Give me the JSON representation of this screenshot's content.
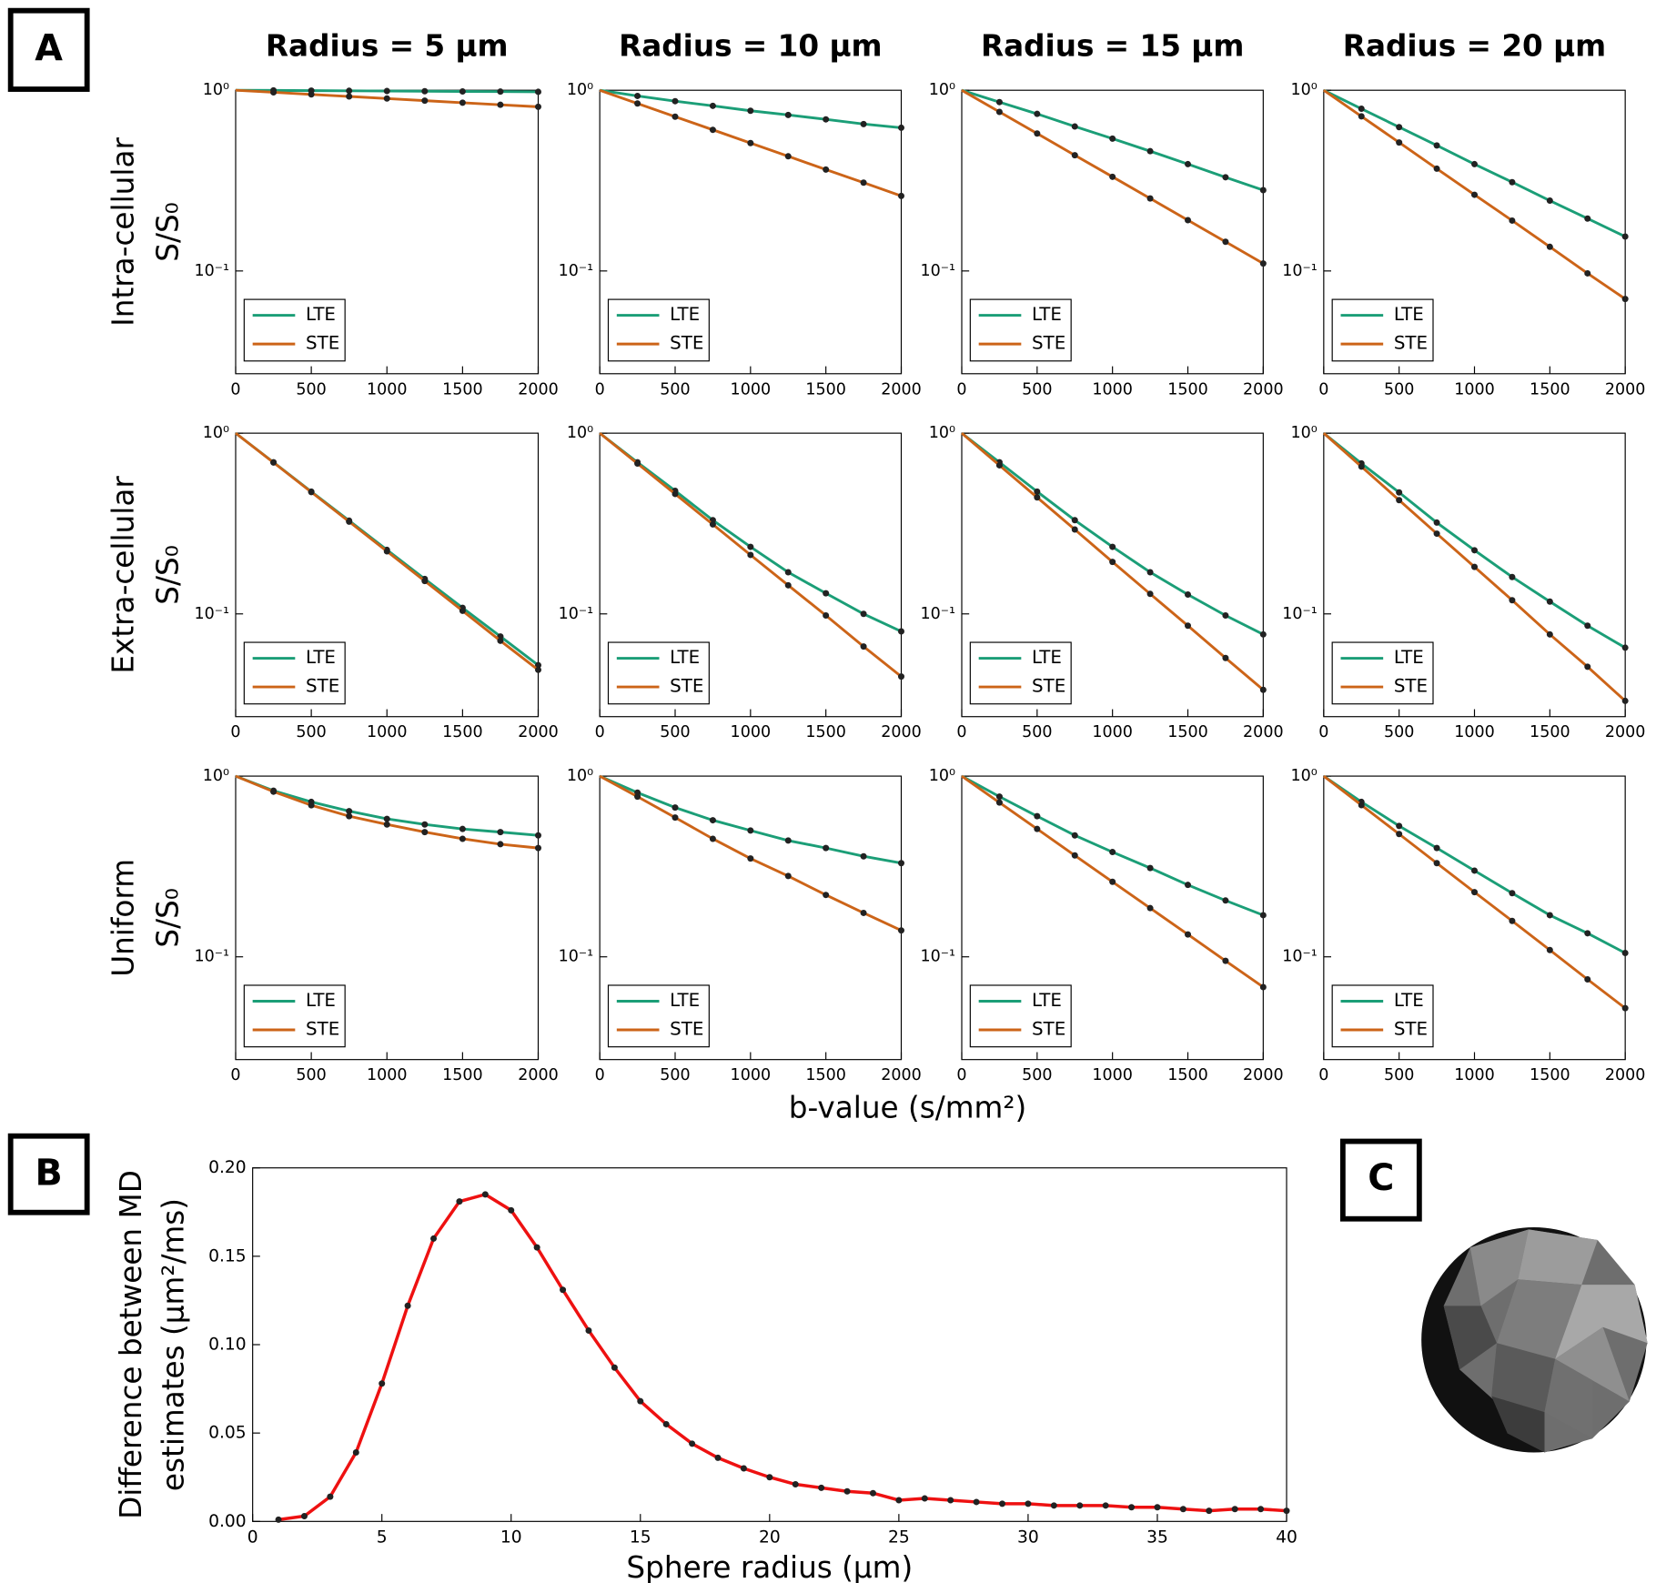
{
  "panel_labels": [
    "A",
    "B",
    "C"
  ],
  "shared_xlabel": "b-value (s/mm²)",
  "chart_data": [
    {
      "type": "line",
      "title": "Radius = 5 μm",
      "ylabel": [
        "Intra-cellular",
        "S/S₀"
      ],
      "log_y": true,
      "legend": "lower left",
      "x": [
        0,
        250,
        500,
        750,
        1000,
        1250,
        1500,
        1750,
        2000
      ],
      "xlim": [
        0,
        2000
      ],
      "xticks": [
        0,
        500,
        1000,
        1500,
        2000
      ],
      "ylim": [
        0.027,
        1
      ],
      "yticks": [
        {
          "value": 1,
          "label": "10⁰"
        },
        {
          "value": 0.1,
          "label": "10⁻¹"
        }
      ],
      "series": [
        {
          "name": "LTE",
          "color": "#1b9e77",
          "values": [
            1,
            0.998,
            0.995,
            0.993,
            0.99,
            0.988,
            0.985,
            0.983,
            0.98
          ]
        },
        {
          "name": "STE",
          "color": "#cc6418",
          "values": [
            1,
            0.974,
            0.948,
            0.924,
            0.9,
            0.876,
            0.853,
            0.831,
            0.81
          ]
        }
      ]
    },
    {
      "type": "line",
      "title": "Radius = 10 μm",
      "log_y": true,
      "legend": "lower left",
      "x": [
        0,
        250,
        500,
        750,
        1000,
        1250,
        1500,
        1750,
        2000
      ],
      "xlim": [
        0,
        2000
      ],
      "xticks": [
        0,
        500,
        1000,
        1500,
        2000
      ],
      "ylim": [
        0.027,
        1
      ],
      "yticks": [
        {
          "value": 1,
          "label": "10⁰"
        },
        {
          "value": 0.1,
          "label": "10⁻¹"
        }
      ],
      "series": [
        {
          "name": "LTE",
          "color": "#1b9e77",
          "values": [
            1,
            0.93,
            0.87,
            0.82,
            0.77,
            0.73,
            0.69,
            0.65,
            0.62
          ]
        },
        {
          "name": "STE",
          "color": "#cc6418",
          "values": [
            1,
            0.845,
            0.714,
            0.604,
            0.51,
            0.431,
            0.364,
            0.308,
            0.26
          ]
        }
      ]
    },
    {
      "type": "line",
      "title": "Radius = 15 μm",
      "log_y": true,
      "legend": "lower left",
      "x": [
        0,
        250,
        500,
        750,
        1000,
        1250,
        1500,
        1750,
        2000
      ],
      "xlim": [
        0,
        2000
      ],
      "xticks": [
        0,
        500,
        1000,
        1500,
        2000
      ],
      "ylim": [
        0.027,
        1
      ],
      "yticks": [
        {
          "value": 1,
          "label": "10⁰"
        },
        {
          "value": 0.1,
          "label": "10⁻¹"
        }
      ],
      "series": [
        {
          "name": "LTE",
          "color": "#1b9e77",
          "values": [
            1,
            0.86,
            0.74,
            0.63,
            0.54,
            0.46,
            0.39,
            0.33,
            0.28
          ]
        },
        {
          "name": "STE",
          "color": "#cc6418",
          "values": [
            1,
            0.759,
            0.576,
            0.437,
            0.332,
            0.252,
            0.191,
            0.145,
            0.11
          ]
        }
      ]
    },
    {
      "type": "line",
      "title": "Radius = 20 μm",
      "log_y": true,
      "legend": "lower left",
      "x": [
        0,
        250,
        500,
        750,
        1000,
        1250,
        1500,
        1750,
        2000
      ],
      "xlim": [
        0,
        2000
      ],
      "xticks": [
        0,
        500,
        1000,
        1500,
        2000
      ],
      "ylim": [
        0.027,
        1
      ],
      "yticks": [
        {
          "value": 1,
          "label": "10⁰"
        },
        {
          "value": 0.1,
          "label": "10⁻¹"
        }
      ],
      "series": [
        {
          "name": "LTE",
          "color": "#1b9e77",
          "values": [
            1,
            0.79,
            0.625,
            0.495,
            0.39,
            0.31,
            0.245,
            0.195,
            0.155
          ]
        },
        {
          "name": "STE",
          "color": "#cc6418",
          "values": [
            1,
            0.717,
            0.514,
            0.368,
            0.264,
            0.19,
            0.136,
            0.097,
            0.07
          ]
        }
      ]
    },
    {
      "type": "line",
      "ylabel": [
        "Extra-cellular",
        "S/S₀"
      ],
      "log_y": true,
      "legend": "lower left",
      "x": [
        0,
        250,
        500,
        750,
        1000,
        1250,
        1500,
        1750,
        2000
      ],
      "xlim": [
        0,
        2000
      ],
      "xticks": [
        0,
        500,
        1000,
        1500,
        2000
      ],
      "ylim": [
        0.027,
        1
      ],
      "yticks": [
        {
          "value": 1,
          "label": "10⁰"
        },
        {
          "value": 0.1,
          "label": "10⁻¹"
        }
      ],
      "series": [
        {
          "name": "LTE",
          "color": "#1b9e77",
          "values": [
            1,
            0.69,
            0.475,
            0.328,
            0.226,
            0.156,
            0.108,
            0.075,
            0.052
          ]
        },
        {
          "name": "STE",
          "color": "#cc6418",
          "values": [
            1,
            0.688,
            0.472,
            0.324,
            0.222,
            0.152,
            0.104,
            0.071,
            0.049
          ]
        }
      ]
    },
    {
      "type": "line",
      "log_y": true,
      "legend": "lower left",
      "x": [
        0,
        250,
        500,
        750,
        1000,
        1250,
        1500,
        1750,
        2000
      ],
      "xlim": [
        0,
        2000
      ],
      "xticks": [
        0,
        500,
        1000,
        1500,
        2000
      ],
      "ylim": [
        0.027,
        1
      ],
      "yticks": [
        {
          "value": 1,
          "label": "10⁰"
        },
        {
          "value": 0.1,
          "label": "10⁻¹"
        }
      ],
      "series": [
        {
          "name": "LTE",
          "color": "#1b9e77",
          "values": [
            1,
            0.69,
            0.48,
            0.33,
            0.235,
            0.17,
            0.13,
            0.1,
            0.08
          ]
        },
        {
          "name": "STE",
          "color": "#cc6418",
          "values": [
            1,
            0.679,
            0.461,
            0.313,
            0.212,
            0.144,
            0.098,
            0.066,
            0.045
          ]
        }
      ]
    },
    {
      "type": "line",
      "log_y": true,
      "legend": "lower left",
      "x": [
        0,
        250,
        500,
        750,
        1000,
        1250,
        1500,
        1750,
        2000
      ],
      "xlim": [
        0,
        2000
      ],
      "xticks": [
        0,
        500,
        1000,
        1500,
        2000
      ],
      "ylim": [
        0.027,
        1
      ],
      "yticks": [
        {
          "value": 1,
          "label": "10⁰"
        },
        {
          "value": 0.1,
          "label": "10⁻¹"
        }
      ],
      "series": [
        {
          "name": "LTE",
          "color": "#1b9e77",
          "values": [
            1,
            0.69,
            0.475,
            0.33,
            0.235,
            0.17,
            0.128,
            0.098,
            0.077
          ]
        },
        {
          "name": "STE",
          "color": "#cc6418",
          "values": [
            1,
            0.664,
            0.441,
            0.293,
            0.194,
            0.129,
            0.086,
            0.057,
            0.038
          ]
        }
      ]
    },
    {
      "type": "line",
      "log_y": true,
      "legend": "lower left",
      "x": [
        0,
        250,
        500,
        750,
        1000,
        1250,
        1500,
        1750,
        2000
      ],
      "xlim": [
        0,
        2000
      ],
      "xticks": [
        0,
        500,
        1000,
        1500,
        2000
      ],
      "ylim": [
        0.027,
        1
      ],
      "yticks": [
        {
          "value": 1,
          "label": "10⁰"
        },
        {
          "value": 0.1,
          "label": "10⁻¹"
        }
      ],
      "series": [
        {
          "name": "LTE",
          "color": "#1b9e77",
          "values": [
            1,
            0.68,
            0.47,
            0.32,
            0.225,
            0.16,
            0.117,
            0.086,
            0.065
          ]
        },
        {
          "name": "STE",
          "color": "#cc6418",
          "values": [
            1,
            0.653,
            0.426,
            0.278,
            0.182,
            0.119,
            0.077,
            0.051,
            0.033
          ]
        }
      ]
    },
    {
      "type": "line",
      "ylabel": [
        "Uniform",
        "S/S₀"
      ],
      "log_y": true,
      "legend": "lower left",
      "x": [
        0,
        250,
        500,
        750,
        1000,
        1250,
        1500,
        1750,
        2000
      ],
      "xlim": [
        0,
        2000
      ],
      "xticks": [
        0,
        500,
        1000,
        1500,
        2000
      ],
      "ylim": [
        0.027,
        1
      ],
      "yticks": [
        {
          "value": 1,
          "label": "10⁰"
        },
        {
          "value": 0.1,
          "label": "10⁻¹"
        }
      ],
      "series": [
        {
          "name": "LTE",
          "color": "#1b9e77",
          "values": [
            1,
            0.83,
            0.72,
            0.64,
            0.58,
            0.54,
            0.51,
            0.49,
            0.47
          ]
        },
        {
          "name": "STE",
          "color": "#cc6418",
          "values": [
            1,
            0.82,
            0.69,
            0.6,
            0.54,
            0.49,
            0.45,
            0.42,
            0.4
          ]
        }
      ]
    },
    {
      "type": "line",
      "log_y": true,
      "legend": "lower left",
      "x": [
        0,
        250,
        500,
        750,
        1000,
        1250,
        1500,
        1750,
        2000
      ],
      "xlim": [
        0,
        2000
      ],
      "xticks": [
        0,
        500,
        1000,
        1500,
        2000
      ],
      "ylim": [
        0.027,
        1
      ],
      "yticks": [
        {
          "value": 1,
          "label": "10⁰"
        },
        {
          "value": 0.1,
          "label": "10⁻¹"
        }
      ],
      "series": [
        {
          "name": "LTE",
          "color": "#1b9e77",
          "values": [
            1,
            0.81,
            0.67,
            0.57,
            0.5,
            0.44,
            0.4,
            0.36,
            0.33
          ]
        },
        {
          "name": "STE",
          "color": "#cc6418",
          "values": [
            1,
            0.77,
            0.59,
            0.45,
            0.35,
            0.28,
            0.22,
            0.175,
            0.14
          ]
        }
      ]
    },
    {
      "type": "line",
      "log_y": true,
      "legend": "lower left",
      "x": [
        0,
        250,
        500,
        750,
        1000,
        1250,
        1500,
        1750,
        2000
      ],
      "xlim": [
        0,
        2000
      ],
      "xticks": [
        0,
        500,
        1000,
        1500,
        2000
      ],
      "ylim": [
        0.027,
        1
      ],
      "yticks": [
        {
          "value": 1,
          "label": "10⁰"
        },
        {
          "value": 0.1,
          "label": "10⁻¹"
        }
      ],
      "series": [
        {
          "name": "LTE",
          "color": "#1b9e77",
          "values": [
            1,
            0.77,
            0.6,
            0.47,
            0.38,
            0.31,
            0.25,
            0.205,
            0.17
          ]
        },
        {
          "name": "STE",
          "color": "#cc6418",
          "values": [
            1,
            0.714,
            0.51,
            0.364,
            0.26,
            0.186,
            0.133,
            0.095,
            0.068
          ]
        }
      ]
    },
    {
      "type": "line",
      "log_y": true,
      "legend": "lower left",
      "x": [
        0,
        250,
        500,
        750,
        1000,
        1250,
        1500,
        1750,
        2000
      ],
      "xlim": [
        0,
        2000
      ],
      "xticks": [
        0,
        500,
        1000,
        1500,
        2000
      ],
      "ylim": [
        0.027,
        1
      ],
      "yticks": [
        {
          "value": 1,
          "label": "10⁰"
        },
        {
          "value": 0.1,
          "label": "10⁻¹"
        }
      ],
      "series": [
        {
          "name": "LTE",
          "color": "#1b9e77",
          "values": [
            1,
            0.72,
            0.53,
            0.4,
            0.3,
            0.225,
            0.17,
            0.135,
            0.105
          ]
        },
        {
          "name": "STE",
          "color": "#cc6418",
          "values": [
            1,
            0.691,
            0.478,
            0.33,
            0.228,
            0.158,
            0.109,
            0.075,
            0.052
          ]
        }
      ]
    },
    {
      "type": "line",
      "xlabel": "Sphere radius (μm)",
      "ylabel": [
        "Difference between MD",
        "estimates (μm²/ms)"
      ],
      "log_y": false,
      "x": [
        1,
        2,
        3,
        4,
        5,
        6,
        7,
        8,
        9,
        10,
        11,
        12,
        13,
        14,
        15,
        16,
        17,
        18,
        19,
        20,
        21,
        22,
        23,
        24,
        25,
        26,
        27,
        28,
        29,
        30,
        31,
        32,
        33,
        34,
        35,
        36,
        37,
        38,
        39,
        40
      ],
      "xlim": [
        0,
        40
      ],
      "xticks": [
        0,
        5,
        10,
        15,
        20,
        25,
        30,
        35,
        40
      ],
      "ylim": [
        0,
        0.2
      ],
      "yticks": [
        {
          "value": 0,
          "label": "0.00"
        },
        {
          "value": 0.05,
          "label": "0.05"
        },
        {
          "value": 0.1,
          "label": "0.10"
        },
        {
          "value": 0.15,
          "label": "0.15"
        },
        {
          "value": 0.2,
          "label": "0.20"
        }
      ],
      "series": [
        {
          "color": "#ee1111",
          "values": [
            0.001,
            0.003,
            0.014,
            0.039,
            0.078,
            0.122,
            0.16,
            0.181,
            0.185,
            0.176,
            0.155,
            0.131,
            0.108,
            0.087,
            0.068,
            0.055,
            0.044,
            0.036,
            0.03,
            0.025,
            0.021,
            0.019,
            0.017,
            0.016,
            0.012,
            0.013,
            0.012,
            0.011,
            0.01,
            0.01,
            0.009,
            0.009,
            0.009,
            0.008,
            0.008,
            0.007,
            0.006,
            0.007,
            0.007,
            0.006
          ]
        }
      ]
    }
  ]
}
